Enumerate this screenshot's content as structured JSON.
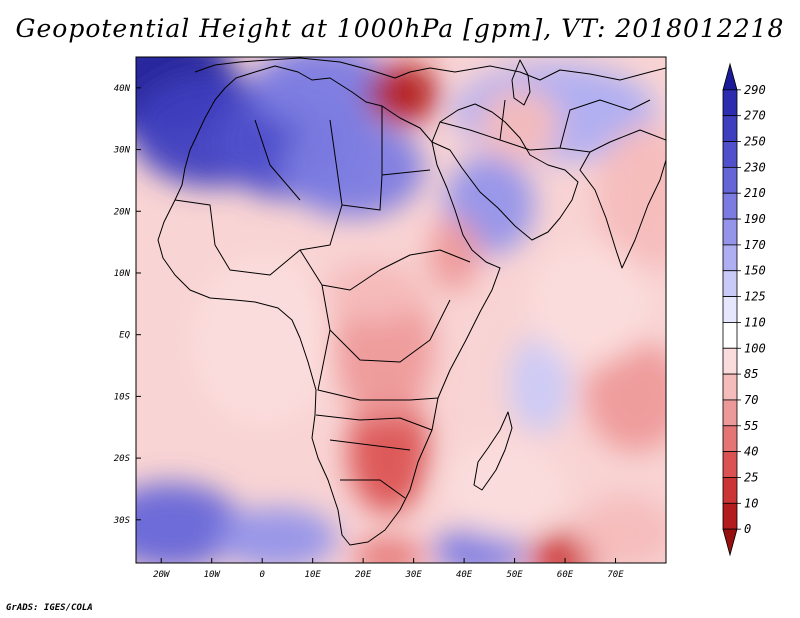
{
  "title": "Geopotential Height at 1000hPa [gpm], VT: 2018012218",
  "credit": "GrADS: IGES/COLA",
  "map": {
    "lon_min": -25,
    "lon_max": 80,
    "lat_min": -37,
    "lat_max": 45,
    "lat_labels": [
      {
        "lat": 40,
        "text": "40N"
      },
      {
        "lat": 30,
        "text": "30N"
      },
      {
        "lat": 20,
        "text": "20N"
      },
      {
        "lat": 10,
        "text": "10N"
      },
      {
        "lat": 0,
        "text": "EQ"
      },
      {
        "lat": -10,
        "text": "10S"
      },
      {
        "lat": -20,
        "text": "20S"
      },
      {
        "lat": -30,
        "text": "30S"
      }
    ],
    "lon_labels": [
      {
        "lon": -20,
        "text": "20W"
      },
      {
        "lon": -10,
        "text": "10W"
      },
      {
        "lon": 0,
        "text": "0"
      },
      {
        "lon": 10,
        "text": "10E"
      },
      {
        "lon": 20,
        "text": "20E"
      },
      {
        "lon": 30,
        "text": "30E"
      },
      {
        "lon": 40,
        "text": "40E"
      },
      {
        "lon": 50,
        "text": "50E"
      },
      {
        "lon": 60,
        "text": "60E"
      },
      {
        "lon": 70,
        "text": "70E"
      }
    ],
    "anomalies": [
      {
        "lon": -21,
        "lat": 41,
        "value": 290,
        "rx": 16,
        "ry": 9
      },
      {
        "lon": -10,
        "lat": 33,
        "value": 250,
        "rx": 16,
        "ry": 9
      },
      {
        "lon": 5,
        "lat": 31,
        "value": 230,
        "rx": 14,
        "ry": 9
      },
      {
        "lon": 18,
        "lat": 27,
        "value": 200,
        "rx": 14,
        "ry": 8
      },
      {
        "lon": 12,
        "lat": 40,
        "value": 190,
        "rx": 14,
        "ry": 7
      },
      {
        "lon": 45,
        "lat": 21,
        "value": 175,
        "rx": 9,
        "ry": 8
      },
      {
        "lon": 58,
        "lat": 36,
        "value": 150,
        "rx": 20,
        "ry": 8
      },
      {
        "lon": -18,
        "lat": -31,
        "value": 220,
        "rx": 14,
        "ry": 7
      },
      {
        "lon": 3,
        "lat": -33,
        "value": 180,
        "rx": 12,
        "ry": 5
      },
      {
        "lon": 43,
        "lat": -35,
        "value": 200,
        "rx": 9,
        "ry": 4
      },
      {
        "lon": 55,
        "lat": -8,
        "value": 140,
        "rx": 6,
        "ry": 8
      },
      {
        "lon": 28,
        "lat": 39,
        "value": 0,
        "rx": 7,
        "ry": 5
      },
      {
        "lon": 25,
        "lat": -19,
        "value": 30,
        "rx": 8,
        "ry": 10
      },
      {
        "lon": 24,
        "lat": -2,
        "value": 65,
        "rx": 10,
        "ry": 12
      },
      {
        "lon": 22,
        "lat": 7,
        "value": 70,
        "rx": 10,
        "ry": 5
      },
      {
        "lon": 38,
        "lat": 13,
        "value": 55,
        "rx": 5,
        "ry": 6
      },
      {
        "lon": 60,
        "lat": -36,
        "value": 10,
        "rx": 7,
        "ry": 4
      },
      {
        "lon": 25,
        "lat": -36,
        "value": 40,
        "rx": 7,
        "ry": 3
      },
      {
        "lon": 74,
        "lat": -10,
        "value": 60,
        "rx": 10,
        "ry": 9
      },
      {
        "lon": 76,
        "lat": 22,
        "value": 75,
        "rx": 10,
        "ry": 12
      },
      {
        "lon": 51,
        "lat": 34,
        "value": 75,
        "rx": 8,
        "ry": 6
      },
      {
        "lon": 72,
        "lat": -32,
        "value": 75,
        "rx": 10,
        "ry": 6
      },
      {
        "lon": 0,
        "lat": -1,
        "value": 95,
        "rx": 14,
        "ry": 14
      },
      {
        "lon": 65,
        "lat": 5,
        "value": 90,
        "rx": 12,
        "ry": 10
      },
      {
        "lon": 48,
        "lat": -25,
        "value": 90,
        "rx": 12,
        "ry": 8
      }
    ]
  },
  "colorbar": {
    "levels": [
      "290",
      "270",
      "250",
      "230",
      "210",
      "190",
      "170",
      "150",
      "125",
      "110",
      "100",
      "85",
      "70",
      "55",
      "40",
      "25",
      "10",
      "0"
    ],
    "colors": [
      "#1b1b9a",
      "#2c2cb0",
      "#3e3ec0",
      "#5050cc",
      "#6565d8",
      "#7b7be2",
      "#9494ea",
      "#aeaef2",
      "#cacaf8",
      "#e6e6fc",
      "#ffffff",
      "#fbdcdc",
      "#f5bcbc",
      "#ee9999",
      "#e57474",
      "#db5252",
      "#cc3535",
      "#b21c1c",
      "#961010"
    ]
  }
}
